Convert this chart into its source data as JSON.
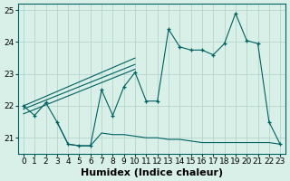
{
  "main_x": [
    0,
    1,
    2,
    3,
    4,
    5,
    6,
    7,
    8,
    9,
    10,
    11,
    12,
    13,
    14,
    15,
    16,
    17,
    18,
    19,
    20,
    21,
    22,
    23
  ],
  "main_y": [
    22.0,
    21.7,
    22.1,
    21.5,
    20.8,
    20.75,
    20.75,
    22.5,
    21.7,
    22.6,
    23.05,
    22.15,
    22.15,
    24.4,
    23.85,
    23.75,
    23.75,
    23.6,
    23.95,
    24.9,
    24.05,
    23.95,
    21.5,
    20.8
  ],
  "trend1_x": [
    0,
    10
  ],
  "trend1_y": [
    22.0,
    23.5
  ],
  "trend2_x": [
    0,
    10
  ],
  "trend2_y": [
    21.9,
    23.3
  ],
  "trend3_x": [
    0,
    10
  ],
  "trend3_y": [
    21.75,
    23.15
  ],
  "bottom_x": [
    3,
    4,
    5,
    6,
    7,
    8,
    9,
    10,
    11,
    12,
    13,
    14,
    15,
    16,
    17,
    18,
    19,
    20,
    21,
    22,
    23
  ],
  "bottom_y": [
    21.5,
    20.8,
    20.75,
    20.75,
    21.15,
    21.1,
    21.1,
    21.05,
    21.0,
    21.0,
    20.95,
    20.95,
    20.9,
    20.85,
    20.85,
    20.85,
    20.85,
    20.85,
    20.85,
    20.85,
    20.8
  ],
  "ylim": [
    20.5,
    25.2
  ],
  "xlim": [
    -0.5,
    23.5
  ],
  "yticks": [
    21,
    22,
    23,
    24,
    25
  ],
  "xticks": [
    0,
    1,
    2,
    3,
    4,
    5,
    6,
    7,
    8,
    9,
    10,
    11,
    12,
    13,
    14,
    15,
    16,
    17,
    18,
    19,
    20,
    21,
    22,
    23
  ],
  "xlabel": "Humidex (Indice chaleur)",
  "line_color": "#006060",
  "bg_color": "#d8f0e8",
  "grid_color": "#b0d0c8",
  "tick_fontsize": 6.5,
  "xlabel_fontsize": 8
}
